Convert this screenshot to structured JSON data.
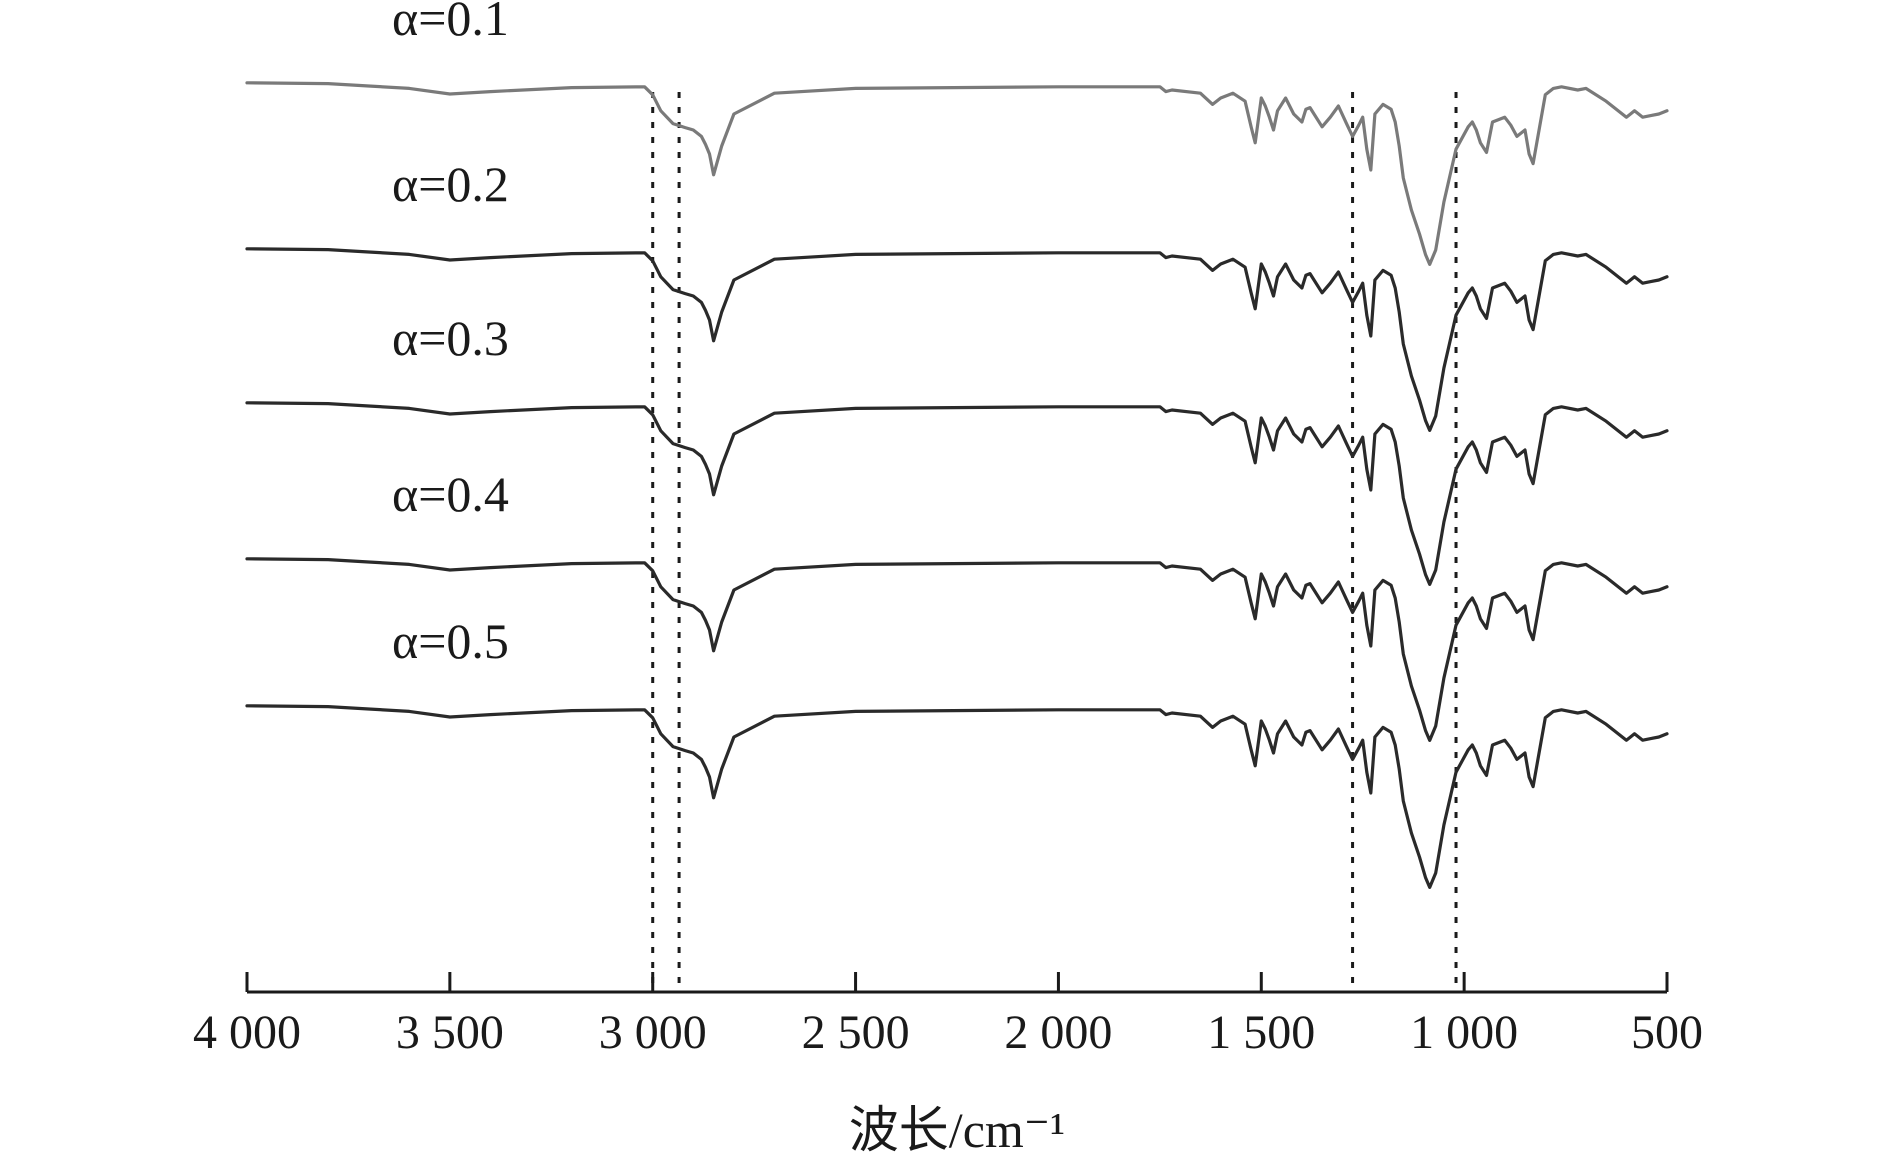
{
  "chart_data": {
    "type": "line",
    "xlabel": "波长/cm⁻¹",
    "xlim": [
      4000,
      500
    ],
    "xticks": [
      4000,
      3500,
      3000,
      2500,
      2000,
      1500,
      1000,
      500
    ],
    "xtick_labels": [
      "4 000",
      "3 500",
      "3 000",
      "2 500",
      "2 000",
      "1 500",
      "1 000",
      "500"
    ],
    "y_axis_shown": false,
    "grid": false,
    "reference_lines_x": [
      3000,
      2935,
      1275,
      1020
    ],
    "series": [
      {
        "name": "α=0.1",
        "color": "#7a7a7a",
        "x": [
          4000,
          3800,
          3700,
          3600,
          3500,
          3400,
          3200,
          3020,
          3000,
          2980,
          2950,
          2920,
          2900,
          2880,
          2870,
          2860,
          2850,
          2830,
          2800,
          2700,
          2500,
          2000,
          1750,
          1735,
          1720,
          1650,
          1620,
          1600,
          1570,
          1540,
          1525,
          1515,
          1500,
          1490,
          1480,
          1470,
          1460,
          1440,
          1420,
          1400,
          1390,
          1380,
          1350,
          1330,
          1310,
          1290,
          1275,
          1260,
          1250,
          1240,
          1230,
          1220,
          1200,
          1180,
          1170,
          1160,
          1150,
          1130,
          1110,
          1095,
          1085,
          1070,
          1050,
          1020,
          990,
          980,
          970,
          960,
          945,
          930,
          900,
          885,
          870,
          850,
          840,
          830,
          800,
          780,
          760,
          720,
          700,
          650,
          600,
          590,
          580,
          560,
          540,
          520,
          500
        ],
        "y": [
          0.995,
          0.99,
          0.975,
          0.96,
          0.925,
          0.94,
          0.965,
          0.97,
          0.92,
          0.82,
          0.74,
          0.715,
          0.7,
          0.66,
          0.61,
          0.55,
          0.42,
          0.6,
          0.8,
          0.93,
          0.96,
          0.97,
          0.97,
          0.94,
          0.95,
          0.93,
          0.86,
          0.9,
          0.93,
          0.88,
          0.72,
          0.62,
          0.9,
          0.85,
          0.78,
          0.7,
          0.82,
          0.9,
          0.8,
          0.75,
          0.83,
          0.84,
          0.72,
          0.78,
          0.85,
          0.74,
          0.66,
          0.73,
          0.78,
          0.58,
          0.45,
          0.8,
          0.86,
          0.83,
          0.75,
          0.6,
          0.4,
          0.2,
          0.05,
          -0.08,
          -0.14,
          -0.05,
          0.25,
          0.58,
          0.72,
          0.75,
          0.7,
          0.62,
          0.56,
          0.75,
          0.78,
          0.73,
          0.66,
          0.7,
          0.55,
          0.49,
          0.92,
          0.96,
          0.97,
          0.95,
          0.96,
          0.88,
          0.78,
          0.8,
          0.82,
          0.78,
          0.79,
          0.8,
          0.82
        ]
      },
      {
        "name": "α=0.2",
        "color": "#2a2a2a",
        "x": [
          4000,
          3800,
          3700,
          3600,
          3500,
          3400,
          3200,
          3020,
          3000,
          2980,
          2950,
          2920,
          2900,
          2880,
          2870,
          2860,
          2850,
          2830,
          2800,
          2700,
          2500,
          2000,
          1750,
          1735,
          1720,
          1650,
          1620,
          1600,
          1570,
          1540,
          1525,
          1515,
          1500,
          1490,
          1480,
          1470,
          1460,
          1440,
          1420,
          1400,
          1390,
          1380,
          1350,
          1330,
          1310,
          1290,
          1275,
          1260,
          1250,
          1240,
          1230,
          1220,
          1200,
          1180,
          1170,
          1160,
          1150,
          1130,
          1110,
          1095,
          1085,
          1070,
          1050,
          1020,
          990,
          980,
          970,
          960,
          945,
          930,
          900,
          885,
          870,
          850,
          840,
          830,
          800,
          780,
          760,
          720,
          700,
          650,
          600,
          590,
          580,
          560,
          540,
          520,
          500
        ],
        "y": [
          0.995,
          0.99,
          0.975,
          0.96,
          0.925,
          0.94,
          0.965,
          0.97,
          0.92,
          0.82,
          0.74,
          0.715,
          0.7,
          0.66,
          0.61,
          0.55,
          0.42,
          0.6,
          0.8,
          0.93,
          0.96,
          0.97,
          0.97,
          0.94,
          0.95,
          0.93,
          0.86,
          0.9,
          0.93,
          0.88,
          0.72,
          0.62,
          0.9,
          0.85,
          0.78,
          0.7,
          0.82,
          0.9,
          0.8,
          0.75,
          0.83,
          0.84,
          0.72,
          0.78,
          0.85,
          0.74,
          0.66,
          0.73,
          0.78,
          0.58,
          0.45,
          0.8,
          0.86,
          0.83,
          0.75,
          0.6,
          0.4,
          0.2,
          0.05,
          -0.08,
          -0.14,
          -0.05,
          0.25,
          0.58,
          0.72,
          0.75,
          0.7,
          0.62,
          0.56,
          0.75,
          0.78,
          0.73,
          0.66,
          0.7,
          0.55,
          0.49,
          0.92,
          0.96,
          0.97,
          0.95,
          0.96,
          0.88,
          0.78,
          0.8,
          0.82,
          0.78,
          0.79,
          0.8,
          0.82
        ]
      },
      {
        "name": "α=0.3",
        "color": "#2a2a2a",
        "x": [
          4000,
          3800,
          3700,
          3600,
          3500,
          3400,
          3200,
          3020,
          3000,
          2980,
          2950,
          2920,
          2900,
          2880,
          2870,
          2860,
          2850,
          2830,
          2800,
          2700,
          2500,
          2000,
          1750,
          1735,
          1720,
          1650,
          1620,
          1600,
          1570,
          1540,
          1525,
          1515,
          1500,
          1490,
          1480,
          1470,
          1460,
          1440,
          1420,
          1400,
          1390,
          1380,
          1350,
          1330,
          1310,
          1290,
          1275,
          1260,
          1250,
          1240,
          1230,
          1220,
          1200,
          1180,
          1170,
          1160,
          1150,
          1130,
          1110,
          1095,
          1085,
          1070,
          1050,
          1020,
          990,
          980,
          970,
          960,
          945,
          930,
          900,
          885,
          870,
          850,
          840,
          830,
          800,
          780,
          760,
          720,
          700,
          650,
          600,
          590,
          580,
          560,
          540,
          520,
          500
        ],
        "y": [
          0.995,
          0.99,
          0.975,
          0.96,
          0.925,
          0.94,
          0.965,
          0.97,
          0.92,
          0.82,
          0.74,
          0.715,
          0.7,
          0.66,
          0.61,
          0.55,
          0.42,
          0.6,
          0.8,
          0.93,
          0.96,
          0.97,
          0.97,
          0.94,
          0.95,
          0.93,
          0.86,
          0.9,
          0.93,
          0.88,
          0.72,
          0.62,
          0.9,
          0.85,
          0.78,
          0.7,
          0.82,
          0.9,
          0.8,
          0.75,
          0.83,
          0.84,
          0.72,
          0.78,
          0.85,
          0.74,
          0.66,
          0.73,
          0.78,
          0.58,
          0.45,
          0.8,
          0.86,
          0.83,
          0.75,
          0.6,
          0.4,
          0.2,
          0.05,
          -0.08,
          -0.14,
          -0.05,
          0.25,
          0.58,
          0.72,
          0.75,
          0.7,
          0.62,
          0.56,
          0.75,
          0.78,
          0.73,
          0.66,
          0.7,
          0.55,
          0.49,
          0.92,
          0.96,
          0.97,
          0.95,
          0.96,
          0.88,
          0.78,
          0.8,
          0.82,
          0.78,
          0.79,
          0.8,
          0.82
        ]
      },
      {
        "name": "α=0.4",
        "color": "#2a2a2a",
        "x": [
          4000,
          3800,
          3700,
          3600,
          3500,
          3400,
          3200,
          3020,
          3000,
          2980,
          2950,
          2920,
          2900,
          2880,
          2870,
          2860,
          2850,
          2830,
          2800,
          2700,
          2500,
          2000,
          1750,
          1735,
          1720,
          1650,
          1620,
          1600,
          1570,
          1540,
          1525,
          1515,
          1500,
          1490,
          1480,
          1470,
          1460,
          1440,
          1420,
          1400,
          1390,
          1380,
          1350,
          1330,
          1310,
          1290,
          1275,
          1260,
          1250,
          1240,
          1230,
          1220,
          1200,
          1180,
          1170,
          1160,
          1150,
          1130,
          1110,
          1095,
          1085,
          1070,
          1050,
          1020,
          990,
          980,
          970,
          960,
          945,
          930,
          900,
          885,
          870,
          850,
          840,
          830,
          800,
          780,
          760,
          720,
          700,
          650,
          600,
          590,
          580,
          560,
          540,
          520,
          500
        ],
        "y": [
          0.995,
          0.99,
          0.975,
          0.96,
          0.925,
          0.94,
          0.965,
          0.97,
          0.92,
          0.82,
          0.74,
          0.715,
          0.7,
          0.66,
          0.61,
          0.55,
          0.42,
          0.6,
          0.8,
          0.93,
          0.96,
          0.97,
          0.97,
          0.94,
          0.95,
          0.93,
          0.86,
          0.9,
          0.93,
          0.88,
          0.72,
          0.62,
          0.9,
          0.85,
          0.78,
          0.7,
          0.82,
          0.9,
          0.8,
          0.75,
          0.83,
          0.84,
          0.72,
          0.78,
          0.85,
          0.74,
          0.66,
          0.73,
          0.78,
          0.58,
          0.45,
          0.8,
          0.86,
          0.83,
          0.75,
          0.6,
          0.4,
          0.2,
          0.05,
          -0.08,
          -0.14,
          -0.05,
          0.25,
          0.58,
          0.72,
          0.75,
          0.7,
          0.62,
          0.56,
          0.75,
          0.78,
          0.73,
          0.66,
          0.7,
          0.55,
          0.49,
          0.92,
          0.96,
          0.97,
          0.95,
          0.96,
          0.88,
          0.78,
          0.8,
          0.82,
          0.78,
          0.79,
          0.8,
          0.82
        ]
      },
      {
        "name": "α=0.5",
        "color": "#2a2a2a",
        "x": [
          4000,
          3800,
          3700,
          3600,
          3500,
          3400,
          3200,
          3020,
          3000,
          2980,
          2950,
          2920,
          2900,
          2880,
          2870,
          2860,
          2850,
          2830,
          2800,
          2700,
          2500,
          2000,
          1750,
          1735,
          1720,
          1650,
          1620,
          1600,
          1570,
          1540,
          1525,
          1515,
          1500,
          1490,
          1480,
          1470,
          1460,
          1440,
          1420,
          1400,
          1390,
          1380,
          1350,
          1330,
          1310,
          1290,
          1275,
          1260,
          1250,
          1240,
          1230,
          1220,
          1200,
          1180,
          1170,
          1160,
          1150,
          1130,
          1110,
          1095,
          1085,
          1070,
          1050,
          1020,
          990,
          980,
          970,
          960,
          945,
          930,
          900,
          885,
          870,
          850,
          840,
          830,
          800,
          780,
          760,
          720,
          700,
          650,
          600,
          590,
          580,
          560,
          540,
          520,
          500
        ],
        "y": [
          0.995,
          0.99,
          0.975,
          0.96,
          0.925,
          0.94,
          0.965,
          0.97,
          0.92,
          0.82,
          0.74,
          0.715,
          0.7,
          0.66,
          0.61,
          0.55,
          0.42,
          0.6,
          0.8,
          0.93,
          0.96,
          0.97,
          0.97,
          0.94,
          0.95,
          0.93,
          0.86,
          0.9,
          0.93,
          0.88,
          0.72,
          0.62,
          0.9,
          0.85,
          0.78,
          0.7,
          0.82,
          0.9,
          0.8,
          0.75,
          0.83,
          0.84,
          0.72,
          0.78,
          0.85,
          0.74,
          0.66,
          0.73,
          0.78,
          0.58,
          0.45,
          0.8,
          0.86,
          0.83,
          0.75,
          0.6,
          0.4,
          0.2,
          0.05,
          -0.08,
          -0.14,
          -0.05,
          0.25,
          0.58,
          0.72,
          0.75,
          0.7,
          0.62,
          0.56,
          0.75,
          0.78,
          0.73,
          0.66,
          0.7,
          0.55,
          0.49,
          0.92,
          0.96,
          0.97,
          0.95,
          0.96,
          0.88,
          0.78,
          0.8,
          0.82,
          0.78,
          0.79,
          0.8,
          0.82
        ]
      }
    ]
  }
}
